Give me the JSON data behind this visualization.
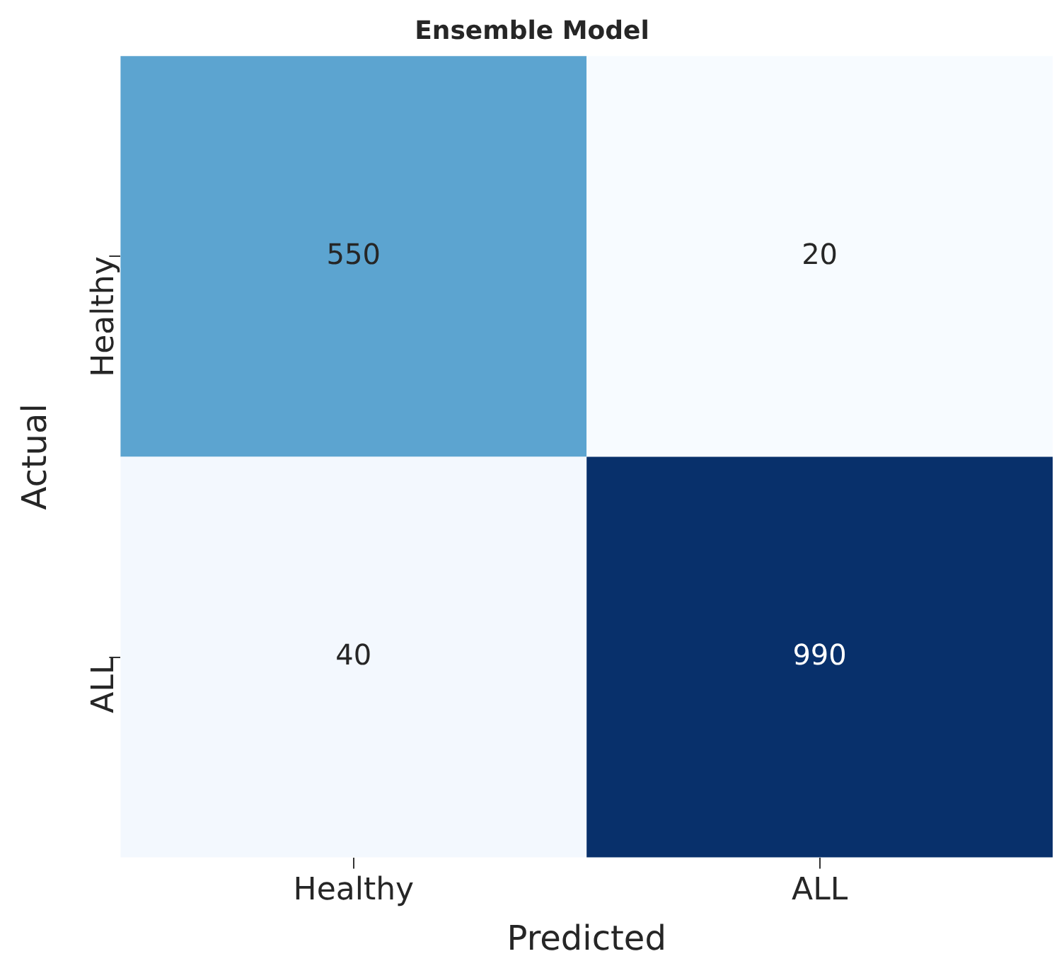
{
  "chart_data": {
    "type": "heatmap",
    "title": "Ensemble Model",
    "xlabel": "Predicted",
    "ylabel": "Actual",
    "categories": [
      "Healthy",
      "ALL"
    ],
    "y_categories": [
      "Healthy",
      "ALL"
    ],
    "cells": [
      [
        550,
        20
      ],
      [
        40,
        990
      ]
    ],
    "data_labels": true,
    "grid": false
  }
}
